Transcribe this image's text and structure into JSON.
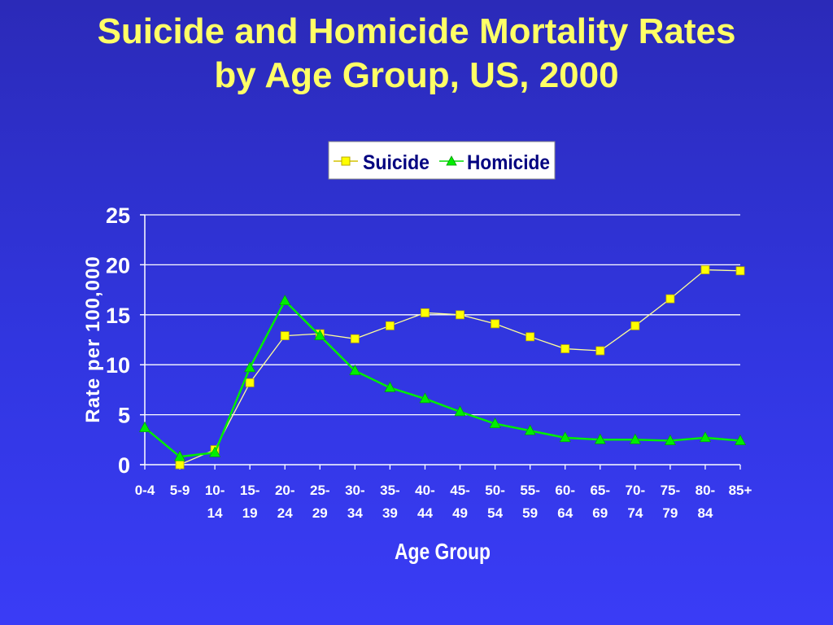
{
  "chart_data": {
    "type": "line",
    "title_line1": "Suicide and Homicide Mortality Rates",
    "title_line2": "by Age Group, US, 2000",
    "xlabel": "Age Group",
    "ylabel": "Rate per 100,000",
    "ylim": [
      0,
      25
    ],
    "yticks": [
      "0",
      "5",
      "10",
      "15",
      "20",
      "25"
    ],
    "grid": true,
    "legend_position": "top-center",
    "categories": [
      [
        "0-4",
        ""
      ],
      [
        "5-9",
        ""
      ],
      [
        "10-",
        "14"
      ],
      [
        "15-",
        "19"
      ],
      [
        "20-",
        "24"
      ],
      [
        "25-",
        "29"
      ],
      [
        "30-",
        "34"
      ],
      [
        "35-",
        "39"
      ],
      [
        "40-",
        "44"
      ],
      [
        "45-",
        "49"
      ],
      [
        "50-",
        "54"
      ],
      [
        "55-",
        "59"
      ],
      [
        "60-",
        "64"
      ],
      [
        "65-",
        "69"
      ],
      [
        "70-",
        "74"
      ],
      [
        "75-",
        "79"
      ],
      [
        "80-",
        "84"
      ],
      [
        "85+",
        ""
      ]
    ],
    "series": [
      {
        "name": "Suicide",
        "marker": "square",
        "color": "#ffff00",
        "line_color": "#ffff99",
        "values": [
          null,
          0.0,
          1.5,
          8.2,
          12.9,
          13.1,
          12.6,
          13.9,
          15.2,
          15.0,
          14.1,
          12.8,
          11.6,
          11.4,
          13.9,
          16.6,
          19.5,
          19.4
        ]
      },
      {
        "name": "Homicide",
        "marker": "triangle",
        "color": "#00ee00",
        "line_color": "#00ee00",
        "values": [
          3.7,
          0.8,
          1.2,
          9.7,
          16.4,
          12.9,
          9.4,
          7.7,
          6.6,
          5.3,
          4.1,
          3.4,
          2.7,
          2.5,
          2.5,
          2.4,
          2.7,
          2.4
        ]
      }
    ]
  },
  "colors": {
    "title": "#ffff66",
    "axis_text": "#ffffff",
    "grid": "#ffffff",
    "legend_bg": "#ffffff",
    "legend_text": "#000080"
  }
}
